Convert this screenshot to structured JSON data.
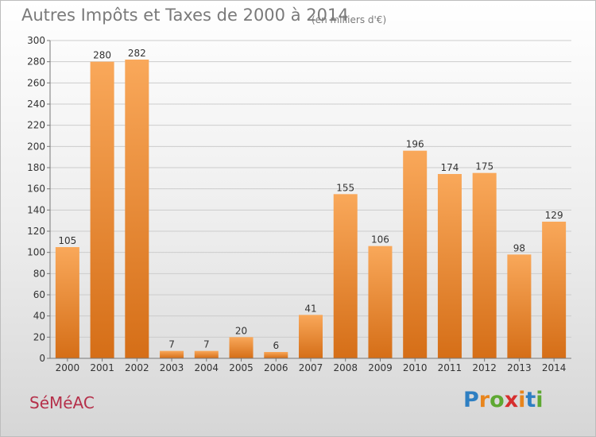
{
  "header": {
    "title": "Autres Impôts et Taxes de 2000 à 2014",
    "subtitle": "(en milliers d'€)"
  },
  "footer": {
    "commune": "SéMéAC",
    "brand": "Proxiti",
    "brand_colors": [
      "#2e7fc2",
      "#e8851c",
      "#5ea832",
      "#d62e2e",
      "#e8851c",
      "#2e7fc2",
      "#5ea832"
    ]
  },
  "colors": {
    "bar_top": "#f9a85a",
    "bar_bottom": "#d56e17",
    "grid": "#cccccc",
    "axis": "#777777"
  },
  "chart_data": {
    "type": "bar",
    "title": "Autres Impôts et Taxes de 2000 à 2014",
    "subtitle": "(en milliers d'€)",
    "xlabel": "",
    "ylabel": "",
    "categories": [
      "2000",
      "2001",
      "2002",
      "2003",
      "2004",
      "2005",
      "2006",
      "2007",
      "2008",
      "2009",
      "2010",
      "2011",
      "2012",
      "2013",
      "2014"
    ],
    "values": [
      105,
      280,
      282,
      7,
      7,
      20,
      6,
      41,
      155,
      106,
      196,
      174,
      175,
      98,
      129
    ],
    "ylim": [
      0,
      300
    ],
    "yticks": [
      0,
      20,
      40,
      60,
      80,
      100,
      120,
      140,
      160,
      180,
      200,
      220,
      240,
      260,
      280,
      300
    ],
    "grid": true,
    "data_labels": true
  }
}
